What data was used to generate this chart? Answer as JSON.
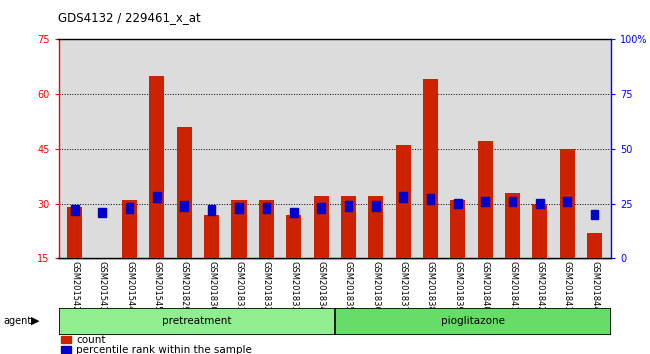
{
  "title": "GDS4132 / 229461_x_at",
  "categories": [
    "GSM201542",
    "GSM201543",
    "GSM201544",
    "GSM201545",
    "GSM201829",
    "GSM201830",
    "GSM201831",
    "GSM201832",
    "GSM201833",
    "GSM201834",
    "GSM201835",
    "GSM201836",
    "GSM201837",
    "GSM201838",
    "GSM201839",
    "GSM201840",
    "GSM201841",
    "GSM201842",
    "GSM201843",
    "GSM201844"
  ],
  "count_values": [
    29,
    15,
    31,
    65,
    51,
    27,
    31,
    31,
    27,
    32,
    32,
    32,
    46,
    64,
    31,
    47,
    33,
    30,
    45,
    22
  ],
  "percentile_rank": [
    22,
    21,
    23,
    28,
    24,
    22,
    23,
    23,
    21,
    23,
    24,
    24,
    28,
    27,
    25,
    26,
    26,
    25,
    26,
    20
  ],
  "groups": [
    {
      "label": "pretreatment",
      "start": 0,
      "end": 9,
      "color": "#90EE90"
    },
    {
      "label": "pioglitazone",
      "start": 10,
      "end": 19,
      "color": "#66DD66"
    }
  ],
  "ylim_left": [
    15,
    75
  ],
  "ylim_right": [
    0,
    100
  ],
  "yticks_left": [
    15,
    30,
    45,
    60,
    75
  ],
  "yticks_right": [
    0,
    25,
    50,
    75,
    100
  ],
  "bar_color": "#CC2200",
  "percentile_color": "#0000CC",
  "bg_color": "#DCDCDC",
  "agent_label": "agent",
  "legend_count": "count",
  "legend_percentile": "percentile rank within the sample",
  "fig_width": 6.5,
  "fig_height": 3.54,
  "dpi": 100
}
